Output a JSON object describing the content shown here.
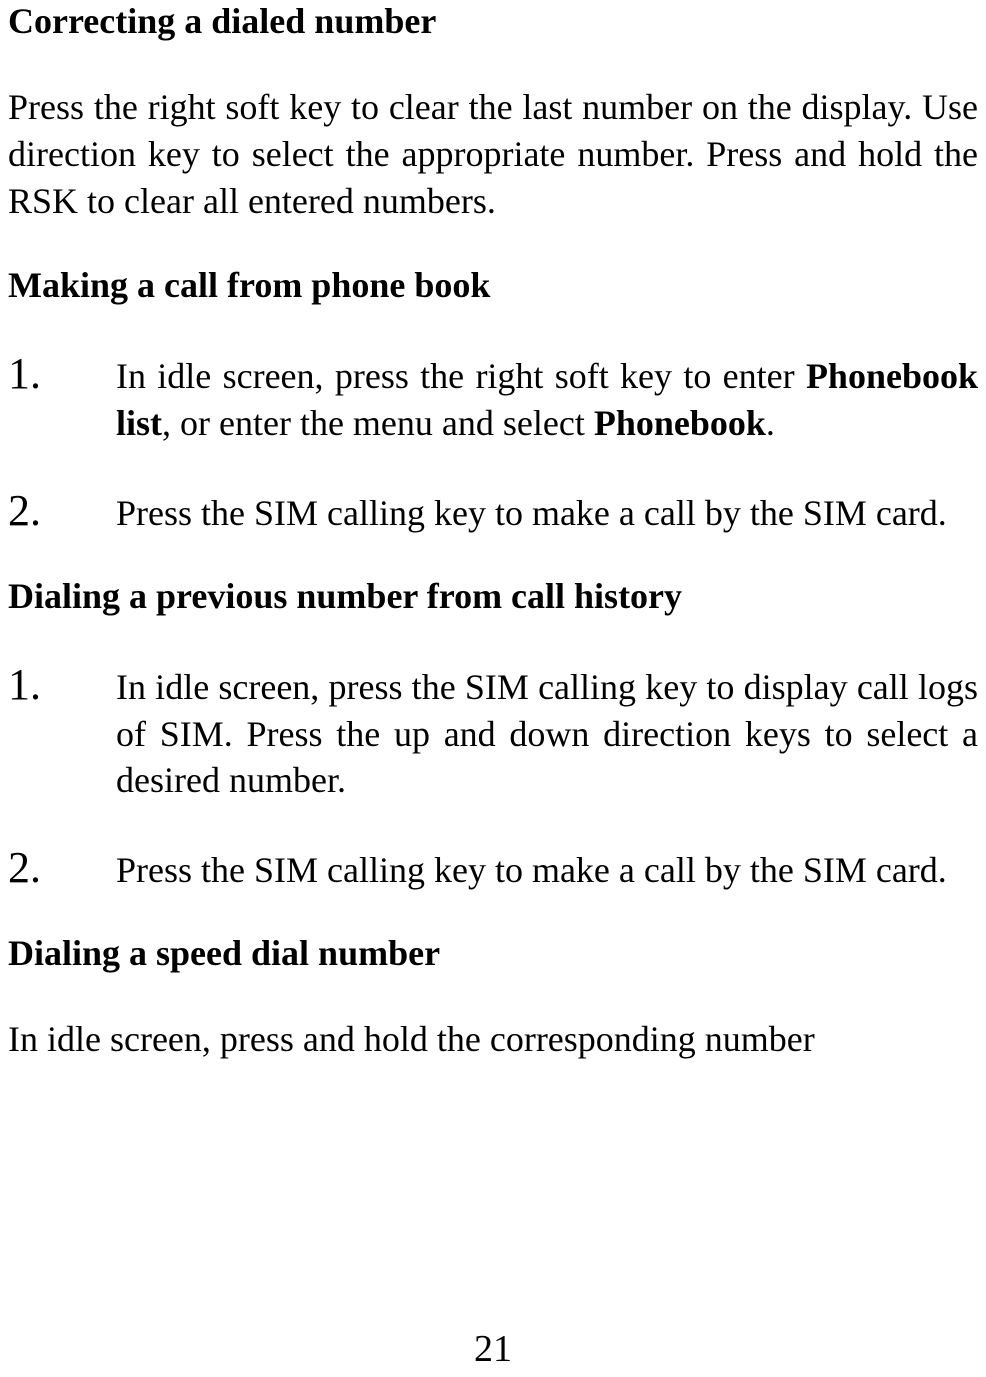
{
  "section1": {
    "heading": "Correcting a dialed number",
    "paragraph": "Press the right soft key to clear the last number on the display. Use direction key to select the appropriate number. Press and hold the RSK to clear all entered numbers."
  },
  "section2": {
    "heading": "Making a call from phone book",
    "items": [
      {
        "number": "1.",
        "text_part1": "In idle screen, press the right soft key to enter ",
        "bold1": "Phonebook list",
        "text_part2": ", or enter the menu and select ",
        "bold2": "Phonebook",
        "text_part3": "."
      },
      {
        "number": "2.",
        "text": "Press the SIM calling key to make a call by the SIM card."
      }
    ]
  },
  "section3": {
    "heading": "Dialing a previous number from call history",
    "items": [
      {
        "number": "1.",
        "text": "In idle screen, press the SIM calling key to display call logs of SIM. Press the up and down direction keys to select a desired number."
      },
      {
        "number": "2.",
        "text": "Press the SIM calling key to make a call by the SIM card."
      }
    ]
  },
  "section4": {
    "heading": "Dialing a speed dial number",
    "paragraph": "In idle screen, press and hold the corresponding number"
  },
  "page_number": "21",
  "styling": {
    "font_family": "Times New Roman",
    "heading_fontsize": 36,
    "body_fontsize": 36,
    "number_fontsize": 44,
    "page_number_fontsize": 38,
    "text_color": "#000000",
    "background_color": "#ffffff"
  }
}
